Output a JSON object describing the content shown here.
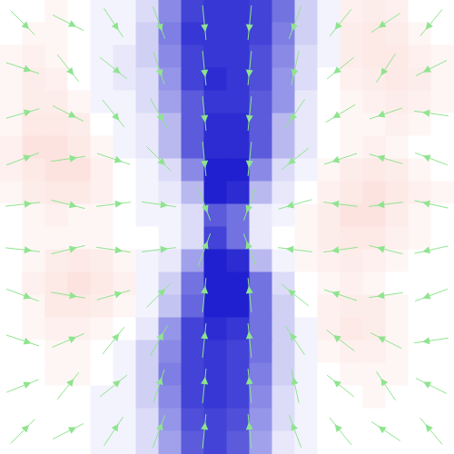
{
  "chart_data": {
    "type": "vector_field",
    "xlim": [
      -1,
      1
    ],
    "ylim": [
      -1,
      1
    ],
    "tick_labels": false,
    "grid": false,
    "color": "#8fe48f",
    "heatmap": {
      "color_range": [
        -1,
        1
      ],
      "x": [
        -0.95,
        -0.85,
        -0.75,
        -0.65,
        -0.55,
        -0.45,
        -0.35,
        -0.25,
        -0.15,
        -0.05,
        0.05,
        0.15,
        0.25,
        0.35,
        0.45,
        0.55,
        0.65,
        0.75,
        0.85,
        0.95
      ],
      "y": [
        0.95,
        0.85,
        0.75,
        0.65,
        0.55,
        0.45,
        0.35,
        0.25,
        0.15,
        0.05,
        -0.05,
        -0.15,
        -0.25,
        -0.35,
        -0.45,
        -0.55,
        -0.65,
        -0.75,
        -0.85,
        -0.95
      ],
      "values": [
        [
          0,
          0,
          0.05,
          0,
          -0.05,
          -0.05,
          -0.15,
          -0.5,
          -0.8,
          -0.85,
          -0.85,
          -0.8,
          -0.6,
          -0.2,
          -0.05,
          0.08,
          0.1,
          0.08,
          0,
          0
        ],
        [
          0,
          0.05,
          0.05,
          0,
          -0.05,
          -0.05,
          -0.2,
          -0.55,
          -0.85,
          -0.85,
          -0.85,
          -0.8,
          -0.55,
          -0.2,
          -0.05,
          0.1,
          0.12,
          0.1,
          0.05,
          0
        ],
        [
          0.05,
          0.08,
          0.05,
          0,
          -0.05,
          -0.1,
          -0.2,
          -0.5,
          -0.8,
          -0.85,
          -0.85,
          -0.75,
          -0.5,
          -0.15,
          -0.05,
          0.1,
          0.12,
          0.12,
          0.08,
          0.05
        ],
        [
          0.05,
          0.1,
          0.08,
          0,
          -0.05,
          -0.1,
          -0.15,
          -0.45,
          -0.8,
          -0.9,
          -0.85,
          -0.75,
          -0.45,
          -0.15,
          0,
          0.08,
          0.1,
          0.12,
          0.1,
          0.05
        ],
        [
          0.05,
          0.1,
          0.1,
          0.05,
          -0.05,
          -0.05,
          -0.15,
          -0.4,
          -0.7,
          -0.85,
          -0.85,
          -0.7,
          -0.45,
          -0.1,
          0,
          0.05,
          0.08,
          0.1,
          0.08,
          0.05
        ],
        [
          0.05,
          0.12,
          0.12,
          0.1,
          0,
          -0.05,
          -0.1,
          -0.3,
          -0.7,
          -0.9,
          -0.9,
          -0.7,
          -0.3,
          -0.1,
          0,
          0.05,
          0.05,
          0.08,
          0.05,
          0
        ],
        [
          0.08,
          0.15,
          0.15,
          0.12,
          0.05,
          -0.05,
          -0.1,
          -0.3,
          -0.7,
          -0.9,
          -0.9,
          -0.7,
          -0.3,
          -0.1,
          0,
          0.05,
          0.08,
          0.05,
          0,
          0
        ],
        [
          0.08,
          0.12,
          0.15,
          0.15,
          0.08,
          0,
          -0.05,
          -0.15,
          -0.5,
          -0.95,
          -0.95,
          -0.5,
          -0.15,
          -0.05,
          0.05,
          0.1,
          0.12,
          0.1,
          0.05,
          0
        ],
        [
          0.05,
          0.1,
          0.12,
          0.12,
          0.08,
          0,
          -0.05,
          -0.1,
          -0.3,
          -0.95,
          -0.9,
          -0.3,
          -0.1,
          0,
          0.08,
          0.12,
          0.15,
          0.12,
          0.08,
          0.05
        ],
        [
          0,
          0.05,
          0.08,
          0.05,
          0.05,
          0,
          -0.05,
          -0.05,
          -0.15,
          -0.7,
          -0.6,
          -0.1,
          -0.05,
          0.05,
          0.1,
          0.15,
          0.15,
          0.1,
          0.05,
          0
        ],
        [
          0,
          0.05,
          0.05,
          0.05,
          0.05,
          0,
          0,
          -0.05,
          -0.15,
          -0.8,
          -0.6,
          -0.1,
          0,
          0.05,
          0.1,
          0.12,
          0.12,
          0.08,
          0.05,
          0
        ],
        [
          0,
          0.05,
          0.1,
          0.12,
          0.1,
          0.05,
          -0.05,
          -0.1,
          -0.4,
          -0.95,
          -0.9,
          -0.3,
          -0.05,
          0.05,
          0.08,
          0.1,
          0.08,
          0.05,
          0,
          0
        ],
        [
          0,
          0.08,
          0.12,
          0.15,
          0.12,
          0.08,
          -0.05,
          -0.2,
          -0.6,
          -0.95,
          -0.95,
          -0.6,
          -0.15,
          0,
          0.05,
          0.08,
          0.05,
          0,
          0,
          0
        ],
        [
          0,
          0.05,
          0.12,
          0.12,
          0.1,
          0.05,
          -0.05,
          -0.25,
          -0.65,
          -0.95,
          -0.95,
          -0.6,
          -0.2,
          0,
          0.08,
          0.1,
          0.1,
          0.05,
          0,
          0
        ],
        [
          0,
          0.05,
          0.08,
          0.08,
          0.05,
          0,
          -0.1,
          -0.45,
          -0.8,
          -0.9,
          -0.85,
          -0.6,
          -0.2,
          -0.05,
          0.08,
          0.12,
          0.1,
          0.05,
          0,
          0
        ],
        [
          0,
          0,
          0.05,
          0.05,
          0,
          -0.05,
          -0.2,
          -0.5,
          -0.8,
          -0.85,
          -0.8,
          -0.6,
          -0.2,
          -0.05,
          0.05,
          0.08,
          0.08,
          0.05,
          0,
          0
        ],
        [
          0,
          0,
          0.05,
          0.05,
          0,
          -0.05,
          -0.2,
          -0.55,
          -0.8,
          -0.85,
          -0.8,
          -0.55,
          -0.2,
          -0.05,
          0,
          0.05,
          0.05,
          0.05,
          0,
          0
        ],
        [
          0,
          0,
          0,
          0,
          -0.05,
          -0.05,
          -0.2,
          -0.5,
          -0.8,
          -0.85,
          -0.8,
          -0.5,
          -0.15,
          -0.05,
          0,
          0,
          0.05,
          0,
          0,
          0
        ],
        [
          0,
          0,
          0,
          0,
          -0.05,
          -0.05,
          -0.15,
          -0.45,
          -0.75,
          -0.8,
          -0.75,
          -0.45,
          -0.15,
          -0.05,
          0,
          0,
          0,
          0,
          0,
          0
        ],
        [
          0,
          0,
          0,
          0,
          -0.05,
          -0.05,
          -0.15,
          -0.4,
          -0.7,
          -0.8,
          -0.7,
          -0.4,
          -0.1,
          -0.05,
          0,
          0,
          0,
          0,
          0,
          0
        ]
      ]
    },
    "vectors": {
      "x": [
        -0.9,
        -0.7,
        -0.5,
        -0.3,
        -0.1,
        0.1,
        0.3,
        0.5,
        0.7,
        0.9
      ],
      "y": [
        0.9,
        0.7,
        0.5,
        0.3,
        0.1,
        -0.1,
        -0.3,
        -0.5,
        -0.7,
        -0.9
      ],
      "u": [
        [
          0.5,
          0.6,
          0.4,
          0.3,
          0.1,
          -0.1,
          -0.3,
          -0.4,
          -0.6,
          -0.5
        ],
        [
          0.6,
          0.4,
          0.5,
          0.3,
          0.1,
          -0.1,
          -0.2,
          -0.5,
          -0.4,
          -0.6
        ],
        [
          0.7,
          0.6,
          0.4,
          0.4,
          0.1,
          -0.1,
          -0.4,
          -0.5,
          -0.6,
          -0.7
        ],
        [
          0.8,
          0.7,
          0.6,
          0.5,
          0.1,
          -0.1,
          -0.5,
          -0.6,
          -0.7,
          -0.8
        ],
        [
          0.9,
          0.8,
          0.8,
          0.7,
          0.3,
          -0.3,
          -0.7,
          -0.8,
          -0.8,
          -0.9
        ],
        [
          0.9,
          0.8,
          0.7,
          0.8,
          0.3,
          -0.3,
          -0.8,
          -0.7,
          -0.8,
          -0.9
        ],
        [
          0.8,
          0.6,
          0.7,
          0.5,
          0.1,
          -0.1,
          -0.5,
          -0.6,
          -0.7,
          -0.8
        ],
        [
          0.6,
          0.7,
          0.4,
          0.4,
          0.1,
          -0.1,
          -0.4,
          -0.4,
          -0.6,
          -0.7
        ],
        [
          0.5,
          0.4,
          0.5,
          0.3,
          0.1,
          -0.1,
          -0.2,
          -0.5,
          -0.4,
          -0.6
        ],
        [
          0.5,
          0.6,
          0.4,
          0.3,
          0.1,
          -0.1,
          -0.3,
          -0.4,
          -0.6,
          -0.5
        ]
      ],
      "v": [
        [
          -0.5,
          -0.3,
          -0.6,
          -0.8,
          -1,
          -1,
          -0.8,
          -0.5,
          -0.4,
          -0.6
        ],
        [
          -0.2,
          -0.5,
          -0.4,
          -0.9,
          -1,
          -1,
          -0.9,
          -0.4,
          -0.6,
          -0.3
        ],
        [
          0.2,
          -0.3,
          -0.5,
          -0.7,
          -1,
          -1,
          -0.6,
          -0.3,
          -0.2,
          0.1
        ],
        [
          0.3,
          0.1,
          -0.2,
          -0.5,
          -1,
          -1,
          -0.4,
          -0.2,
          0.2,
          0.3
        ],
        [
          0.1,
          -0.2,
          0.1,
          -0.1,
          -0.8,
          -0.8,
          -0.2,
          0.1,
          -0.1,
          0.2
        ],
        [
          -0.1,
          0.2,
          -0.1,
          0.1,
          0.8,
          0.8,
          0.1,
          -0.1,
          0.2,
          -0.2
        ],
        [
          -0.3,
          -0.1,
          0.2,
          0.5,
          1,
          1,
          0.4,
          0.2,
          -0.1,
          -0.3
        ],
        [
          -0.2,
          0.3,
          0.5,
          0.7,
          1,
          1,
          0.6,
          0.3,
          0.3,
          -0.1
        ],
        [
          0.2,
          0.5,
          0.4,
          0.9,
          1,
          1,
          0.9,
          0.4,
          0.6,
          0.3
        ],
        [
          0.5,
          0.3,
          0.6,
          0.8,
          1,
          1,
          0.8,
          0.5,
          0.4,
          0.6
        ]
      ]
    }
  }
}
